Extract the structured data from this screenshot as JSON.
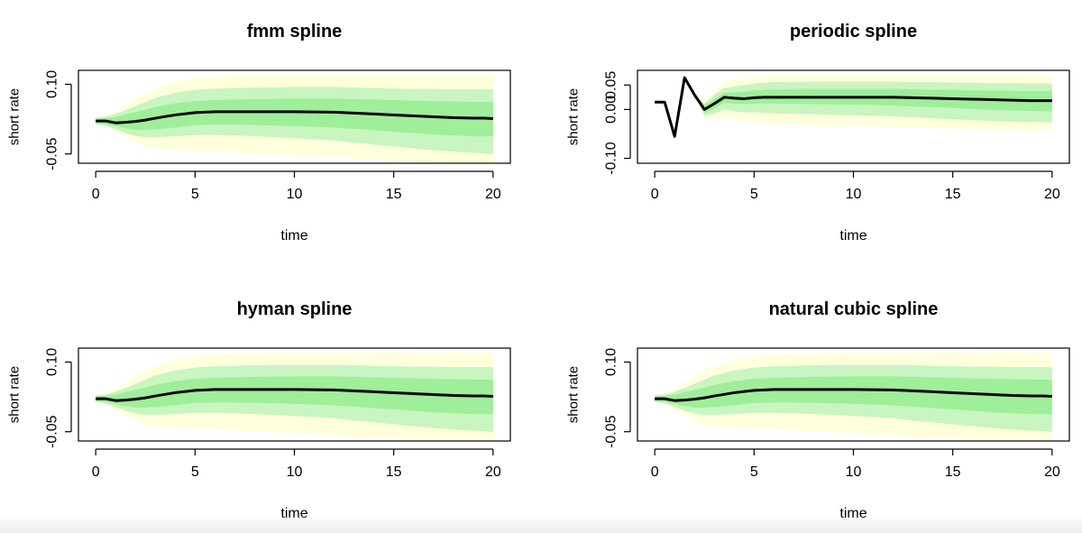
{
  "colors": {
    "outer_band": "#ffffdd",
    "middle_band": "#c8f5c0",
    "inner_band": "#9fee9a",
    "median_line": "#000000",
    "axis": "#000000"
  },
  "chart_data": [
    {
      "type": "area",
      "title": "fmm spline",
      "xlabel": "time",
      "ylabel": "short rate",
      "xlim": [
        0,
        20
      ],
      "ylim": [
        -0.07,
        0.13
      ],
      "xticks": [
        0,
        5,
        10,
        15,
        20
      ],
      "xtick_labels": [
        "0",
        "5",
        "10",
        "15",
        "20"
      ],
      "yticks": [
        0.1,
        -0.05
      ],
      "ytick_labels": [
        "0.10",
        "-0.05"
      ],
      "grid": false,
      "x": [
        0,
        0.5,
        1,
        1.5,
        2,
        2.5,
        3,
        4,
        5,
        6,
        7,
        8,
        10,
        12,
        13,
        14,
        15,
        16,
        17,
        18,
        19,
        19.5,
        20
      ],
      "series": [
        {
          "values": [
            0.021,
            0.021,
            0.017,
            0.018,
            0.02,
            0.023,
            0.027,
            0.034,
            0.039,
            0.041,
            0.041,
            0.041,
            0.041,
            0.04,
            0.038,
            0.036,
            0.034,
            0.032,
            0.03,
            0.028,
            0.027,
            0.027,
            0.026
          ]
        },
        {
          "values": [
            0.026,
            0.027,
            0.03,
            0.035,
            0.04,
            0.045,
            0.051,
            0.059,
            0.064,
            0.066,
            0.067,
            0.068,
            0.069,
            0.069,
            0.068,
            0.067,
            0.066,
            0.065,
            0.064,
            0.063,
            0.062,
            0.062,
            0.062
          ]
        },
        {
          "values": [
            0.016,
            0.014,
            0.01,
            0.005,
            0.002,
            0.002,
            0.003,
            0.007,
            0.012,
            0.013,
            0.013,
            0.012,
            0.01,
            0.007,
            0.004,
            0.001,
            -0.002,
            -0.005,
            -0.008,
            -0.01,
            -0.012,
            -0.012,
            -0.012
          ]
        },
        {
          "values": [
            0.028,
            0.03,
            0.036,
            0.044,
            0.053,
            0.062,
            0.071,
            0.082,
            0.088,
            0.091,
            0.092,
            0.093,
            0.094,
            0.094,
            0.093,
            0.092,
            0.091,
            0.09,
            0.09,
            0.089,
            0.089,
            0.089,
            0.089
          ]
        },
        {
          "values": [
            0.014,
            0.011,
            0.003,
            -0.005,
            -0.011,
            -0.014,
            -0.014,
            -0.012,
            -0.009,
            -0.009,
            -0.01,
            -0.012,
            -0.016,
            -0.021,
            -0.026,
            -0.03,
            -0.034,
            -0.038,
            -0.042,
            -0.045,
            -0.048,
            -0.049,
            -0.05
          ]
        },
        {
          "values": [
            0.029,
            0.033,
            0.043,
            0.056,
            0.07,
            0.082,
            0.092,
            0.105,
            0.113,
            0.117,
            0.119,
            0.119,
            0.12,
            0.12,
            0.12,
            0.121,
            0.121,
            0.121,
            0.121,
            0.121,
            0.121,
            0.12,
            0.12
          ]
        },
        {
          "values": [
            0.013,
            0.009,
            -0.002,
            -0.015,
            -0.027,
            -0.035,
            -0.039,
            -0.042,
            -0.043,
            -0.045,
            -0.047,
            -0.049,
            -0.053,
            -0.057,
            -0.06,
            -0.062,
            -0.064,
            -0.066,
            -0.067,
            -0.068,
            -0.069,
            -0.069,
            -0.07
          ]
        }
      ]
    },
    {
      "type": "area",
      "title": "periodic spline",
      "xlabel": "time",
      "ylabel": "short rate",
      "xlim": [
        0,
        20
      ],
      "ylim": [
        -0.11,
        0.08
      ],
      "xticks": [
        0,
        5,
        10,
        15,
        20
      ],
      "xtick_labels": [
        "0",
        "5",
        "10",
        "15",
        "20"
      ],
      "yticks": [
        0.05,
        0.0,
        -0.1
      ],
      "ytick_labels": [
        "0.05",
        "0.00",
        "-0.10"
      ],
      "grid": false,
      "x": [
        0,
        0.5,
        1,
        1.5,
        2,
        2.5,
        3,
        3.5,
        4,
        4.5,
        5,
        5.5,
        6,
        8,
        10,
        12,
        13,
        14,
        15,
        16,
        17,
        18,
        19,
        19.5,
        20
      ],
      "series": [
        {
          "values": [
            0.015,
            0.015,
            -0.055,
            0.065,
            0.03,
            0.0,
            0.012,
            0.025,
            0.023,
            0.022,
            0.024,
            0.025,
            0.025,
            0.025,
            0.025,
            0.025,
            0.024,
            0.023,
            0.022,
            0.021,
            0.02,
            0.019,
            0.018,
            0.018,
            0.018
          ]
        },
        {
          "values": [
            0.015,
            0.015,
            -0.055,
            0.065,
            0.03,
            0.008,
            0.022,
            0.034,
            0.035,
            0.036,
            0.039,
            0.04,
            0.041,
            0.042,
            0.042,
            0.042,
            0.041,
            0.04,
            0.04,
            0.039,
            0.039,
            0.038,
            0.038,
            0.038,
            0.038
          ]
        },
        {
          "values": [
            0.015,
            0.015,
            -0.055,
            0.065,
            0.03,
            -0.008,
            0.002,
            0.014,
            0.012,
            0.011,
            0.012,
            0.012,
            0.012,
            0.011,
            0.01,
            0.008,
            0.006,
            0.005,
            0.003,
            0.001,
            -0.001,
            -0.002,
            -0.003,
            -0.004,
            -0.004
          ]
        },
        {
          "values": [
            0.015,
            0.015,
            -0.055,
            0.065,
            0.03,
            0.012,
            0.03,
            0.044,
            0.047,
            0.05,
            0.053,
            0.055,
            0.056,
            0.057,
            0.057,
            0.057,
            0.056,
            0.056,
            0.055,
            0.055,
            0.054,
            0.054,
            0.053,
            0.053,
            0.053
          ]
        },
        {
          "values": [
            0.015,
            0.015,
            -0.055,
            0.065,
            0.03,
            -0.012,
            -0.009,
            0.0,
            -0.004,
            -0.006,
            -0.006,
            -0.007,
            -0.008,
            -0.01,
            -0.012,
            -0.014,
            -0.016,
            -0.018,
            -0.02,
            -0.022,
            -0.024,
            -0.025,
            -0.026,
            -0.026,
            -0.026
          ]
        },
        {
          "values": [
            0.015,
            0.015,
            -0.055,
            0.065,
            0.03,
            0.016,
            0.04,
            0.056,
            0.061,
            0.064,
            0.067,
            0.069,
            0.07,
            0.071,
            0.071,
            0.071,
            0.071,
            0.07,
            0.07,
            0.07,
            0.07,
            0.07,
            0.069,
            0.069,
            0.069
          ]
        },
        {
          "values": [
            0.015,
            0.015,
            -0.055,
            0.065,
            0.03,
            -0.016,
            -0.02,
            -0.014,
            -0.02,
            -0.024,
            -0.026,
            -0.028,
            -0.03,
            -0.032,
            -0.034,
            -0.036,
            -0.037,
            -0.038,
            -0.039,
            -0.04,
            -0.041,
            -0.042,
            -0.043,
            -0.043,
            -0.043
          ]
        }
      ]
    },
    {
      "type": "area",
      "title": "hyman spline",
      "xlabel": "time",
      "ylabel": "short rate",
      "xlim": [
        0,
        20
      ],
      "ylim": [
        -0.07,
        0.13
      ],
      "xticks": [
        0,
        5,
        10,
        15,
        20
      ],
      "xtick_labels": [
        "0",
        "5",
        "10",
        "15",
        "20"
      ],
      "yticks": [
        0.1,
        -0.05
      ],
      "ytick_labels": [
        "0.10",
        "-0.05"
      ],
      "grid": false,
      "x": [
        0,
        0.5,
        1,
        1.5,
        2,
        2.5,
        3,
        4,
        5,
        6,
        7,
        8,
        10,
        12,
        13,
        14,
        15,
        16,
        17,
        18,
        19,
        19.5,
        20
      ],
      "series": [
        {
          "values": [
            0.021,
            0.021,
            0.017,
            0.018,
            0.02,
            0.023,
            0.027,
            0.034,
            0.039,
            0.041,
            0.041,
            0.041,
            0.041,
            0.04,
            0.038,
            0.036,
            0.034,
            0.032,
            0.03,
            0.028,
            0.027,
            0.027,
            0.026
          ]
        },
        {
          "values": [
            0.026,
            0.027,
            0.03,
            0.035,
            0.04,
            0.045,
            0.051,
            0.059,
            0.064,
            0.066,
            0.067,
            0.068,
            0.069,
            0.069,
            0.068,
            0.067,
            0.066,
            0.065,
            0.064,
            0.063,
            0.062,
            0.062,
            0.062
          ]
        },
        {
          "values": [
            0.016,
            0.014,
            0.01,
            0.005,
            0.002,
            0.002,
            0.003,
            0.007,
            0.012,
            0.013,
            0.013,
            0.012,
            0.01,
            0.007,
            0.004,
            0.001,
            -0.002,
            -0.005,
            -0.008,
            -0.01,
            -0.012,
            -0.012,
            -0.012
          ]
        },
        {
          "values": [
            0.028,
            0.03,
            0.036,
            0.044,
            0.053,
            0.062,
            0.071,
            0.082,
            0.088,
            0.091,
            0.092,
            0.093,
            0.094,
            0.094,
            0.093,
            0.092,
            0.091,
            0.09,
            0.09,
            0.089,
            0.089,
            0.089,
            0.089
          ]
        },
        {
          "values": [
            0.014,
            0.011,
            0.003,
            -0.005,
            -0.011,
            -0.014,
            -0.014,
            -0.012,
            -0.009,
            -0.009,
            -0.01,
            -0.012,
            -0.016,
            -0.021,
            -0.026,
            -0.03,
            -0.034,
            -0.038,
            -0.042,
            -0.045,
            -0.048,
            -0.049,
            -0.05
          ]
        },
        {
          "values": [
            0.029,
            0.033,
            0.043,
            0.056,
            0.07,
            0.082,
            0.092,
            0.105,
            0.113,
            0.117,
            0.119,
            0.119,
            0.12,
            0.12,
            0.12,
            0.121,
            0.121,
            0.121,
            0.121,
            0.121,
            0.121,
            0.12,
            0.12
          ]
        },
        {
          "values": [
            0.013,
            0.009,
            -0.002,
            -0.015,
            -0.027,
            -0.035,
            -0.039,
            -0.042,
            -0.043,
            -0.045,
            -0.047,
            -0.049,
            -0.053,
            -0.057,
            -0.06,
            -0.062,
            -0.064,
            -0.066,
            -0.067,
            -0.068,
            -0.069,
            -0.069,
            -0.07
          ]
        }
      ]
    },
    {
      "type": "area",
      "title": "natural cubic spline",
      "xlabel": "time",
      "ylabel": "short rate",
      "xlim": [
        0,
        20
      ],
      "ylim": [
        -0.07,
        0.13
      ],
      "xticks": [
        0,
        5,
        10,
        15,
        20
      ],
      "xtick_labels": [
        "0",
        "5",
        "10",
        "15",
        "20"
      ],
      "yticks": [
        0.1,
        -0.05
      ],
      "ytick_labels": [
        "0.10",
        "-0.05"
      ],
      "grid": false,
      "x": [
        0,
        0.5,
        1,
        1.5,
        2,
        2.5,
        3,
        4,
        5,
        6,
        7,
        8,
        10,
        12,
        13,
        14,
        15,
        16,
        17,
        18,
        19,
        19.5,
        20
      ],
      "series": [
        {
          "values": [
            0.021,
            0.021,
            0.017,
            0.018,
            0.02,
            0.023,
            0.027,
            0.034,
            0.039,
            0.041,
            0.041,
            0.041,
            0.041,
            0.04,
            0.038,
            0.036,
            0.034,
            0.032,
            0.03,
            0.028,
            0.027,
            0.027,
            0.026
          ]
        },
        {
          "values": [
            0.026,
            0.027,
            0.03,
            0.035,
            0.04,
            0.045,
            0.051,
            0.059,
            0.064,
            0.066,
            0.067,
            0.068,
            0.069,
            0.069,
            0.068,
            0.067,
            0.066,
            0.065,
            0.064,
            0.063,
            0.062,
            0.062,
            0.062
          ]
        },
        {
          "values": [
            0.016,
            0.014,
            0.01,
            0.005,
            0.002,
            0.002,
            0.003,
            0.007,
            0.012,
            0.013,
            0.013,
            0.012,
            0.01,
            0.007,
            0.004,
            0.001,
            -0.002,
            -0.005,
            -0.008,
            -0.01,
            -0.012,
            -0.012,
            -0.012
          ]
        },
        {
          "values": [
            0.028,
            0.03,
            0.036,
            0.044,
            0.053,
            0.062,
            0.071,
            0.082,
            0.088,
            0.091,
            0.092,
            0.093,
            0.094,
            0.094,
            0.093,
            0.092,
            0.091,
            0.09,
            0.09,
            0.089,
            0.089,
            0.089,
            0.089
          ]
        },
        {
          "values": [
            0.014,
            0.011,
            0.003,
            -0.005,
            -0.011,
            -0.014,
            -0.014,
            -0.012,
            -0.009,
            -0.009,
            -0.01,
            -0.012,
            -0.016,
            -0.021,
            -0.026,
            -0.03,
            -0.034,
            -0.038,
            -0.042,
            -0.045,
            -0.048,
            -0.049,
            -0.05
          ]
        },
        {
          "values": [
            0.029,
            0.033,
            0.043,
            0.056,
            0.07,
            0.082,
            0.092,
            0.105,
            0.113,
            0.117,
            0.119,
            0.119,
            0.12,
            0.12,
            0.12,
            0.121,
            0.121,
            0.121,
            0.121,
            0.121,
            0.121,
            0.12,
            0.12
          ]
        },
        {
          "values": [
            0.013,
            0.009,
            -0.002,
            -0.015,
            -0.027,
            -0.035,
            -0.039,
            -0.042,
            -0.043,
            -0.045,
            -0.047,
            -0.049,
            -0.053,
            -0.057,
            -0.06,
            -0.062,
            -0.064,
            -0.066,
            -0.067,
            -0.068,
            -0.069,
            -0.069,
            -0.07
          ]
        }
      ]
    }
  ]
}
